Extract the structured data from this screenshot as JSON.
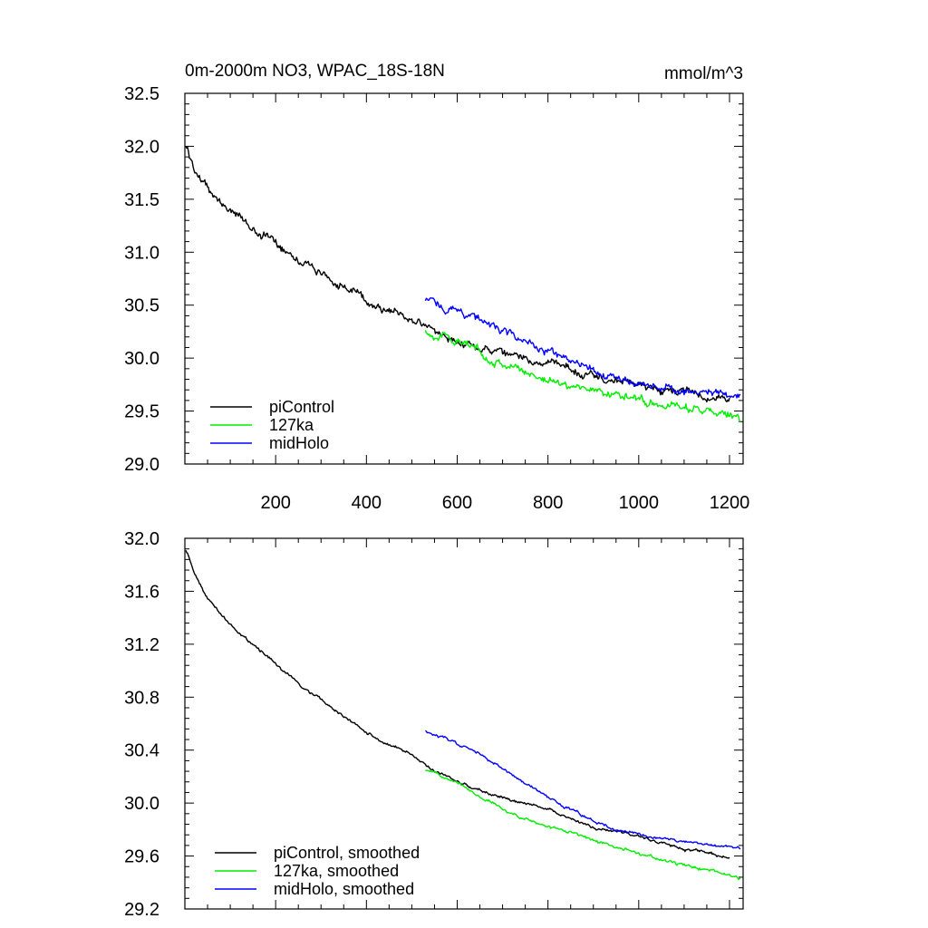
{
  "chart_data": [
    {
      "type": "line",
      "title": "0m-2000m NO3, WPAC_18S-18N",
      "units": "mmol/m^3",
      "xlim": [
        0,
        1230
      ],
      "ylim": [
        29.0,
        32.5
      ],
      "xticks": [
        200,
        400,
        600,
        800,
        1000,
        1200
      ],
      "xtick_labels": [
        "200",
        "400",
        "600",
        "800",
        "1000",
        "1200"
      ],
      "yticks": [
        29.0,
        29.5,
        30.0,
        30.5,
        31.0,
        31.5,
        32.0,
        32.5
      ],
      "ytick_labels": [
        "29.0",
        "29.5",
        "30.0",
        "30.5",
        "31.0",
        "31.5",
        "32.0",
        "32.5"
      ],
      "legend_position": "bottom-left",
      "series": [
        {
          "name": "piControl",
          "color": "#000000",
          "noise": 0.035,
          "x": [
            2,
            20,
            50,
            100,
            150,
            200,
            250,
            300,
            350,
            400,
            450,
            500,
            550,
            600,
            650,
            700,
            750,
            800,
            850,
            900,
            950,
            1000,
            1050,
            1100,
            1150,
            1200
          ],
          "values": [
            32.0,
            31.8,
            31.6,
            31.4,
            31.22,
            31.1,
            30.95,
            30.8,
            30.67,
            30.55,
            30.45,
            30.37,
            30.25,
            30.17,
            30.1,
            30.02,
            30.0,
            29.95,
            29.9,
            29.83,
            29.78,
            29.75,
            29.7,
            29.67,
            29.63,
            29.6
          ]
        },
        {
          "name": "127ka",
          "color": "#00ee00",
          "noise": 0.035,
          "x": [
            530,
            600,
            650,
            700,
            750,
            800,
            850,
            900,
            950,
            1000,
            1050,
            1100,
            1150,
            1200,
            1225
          ],
          "values": [
            30.25,
            30.17,
            30.05,
            29.95,
            29.87,
            29.8,
            29.75,
            29.7,
            29.65,
            29.62,
            29.58,
            29.53,
            29.5,
            29.45,
            29.4
          ]
        },
        {
          "name": "midHolo",
          "color": "#0000ff",
          "noise": 0.035,
          "x": [
            530,
            600,
            650,
            700,
            750,
            800,
            850,
            900,
            950,
            1000,
            1050,
            1100,
            1150,
            1200,
            1225
          ],
          "values": [
            30.55,
            30.45,
            30.37,
            30.25,
            30.15,
            30.05,
            29.95,
            29.87,
            29.82,
            29.77,
            29.73,
            29.7,
            29.68,
            29.67,
            29.65
          ]
        }
      ]
    },
    {
      "type": "line",
      "title": "",
      "xlim": [
        0,
        1230
      ],
      "ylim": [
        29.2,
        32.0
      ],
      "xticks": [
        200,
        400,
        600,
        800,
        1000,
        1200
      ],
      "xtick_labels": [],
      "yticks": [
        29.2,
        29.6,
        30.0,
        30.4,
        30.8,
        31.2,
        31.6,
        32.0
      ],
      "ytick_labels": [
        "29.2",
        "29.6",
        "30.0",
        "30.4",
        "30.8",
        "31.2",
        "31.6",
        "32.0"
      ],
      "legend_position": "bottom-left",
      "series": [
        {
          "name": "piControl, smoothed",
          "color": "#000000",
          "noise": 0.01,
          "x": [
            2,
            20,
            50,
            100,
            150,
            200,
            250,
            300,
            350,
            400,
            450,
            500,
            550,
            600,
            650,
            700,
            750,
            800,
            850,
            900,
            950,
            1000,
            1050,
            1100,
            1150,
            1200
          ],
          "values": [
            31.92,
            31.75,
            31.55,
            31.35,
            31.2,
            31.05,
            30.9,
            30.78,
            30.65,
            30.53,
            30.44,
            30.36,
            30.24,
            30.16,
            30.1,
            30.04,
            30.0,
            29.95,
            29.88,
            29.82,
            29.78,
            29.74,
            29.7,
            29.66,
            29.62,
            29.58
          ]
        },
        {
          "name": "127ka, smoothed",
          "color": "#00ee00",
          "noise": 0.01,
          "x": [
            530,
            600,
            650,
            700,
            750,
            800,
            850,
            900,
            950,
            1000,
            1050,
            1100,
            1150,
            1200,
            1225
          ],
          "values": [
            30.25,
            30.17,
            30.05,
            29.96,
            29.88,
            29.82,
            29.78,
            29.72,
            29.66,
            29.62,
            29.57,
            29.53,
            29.5,
            29.45,
            29.42
          ]
        },
        {
          "name": "midHolo, smoothed",
          "color": "#0000ff",
          "noise": 0.01,
          "x": [
            530,
            600,
            650,
            700,
            750,
            800,
            850,
            900,
            950,
            1000,
            1050,
            1100,
            1150,
            1200,
            1225
          ],
          "values": [
            30.55,
            30.45,
            30.37,
            30.25,
            30.15,
            30.05,
            29.95,
            29.86,
            29.8,
            29.77,
            29.73,
            29.7,
            29.68,
            29.67,
            29.65
          ]
        }
      ]
    }
  ]
}
